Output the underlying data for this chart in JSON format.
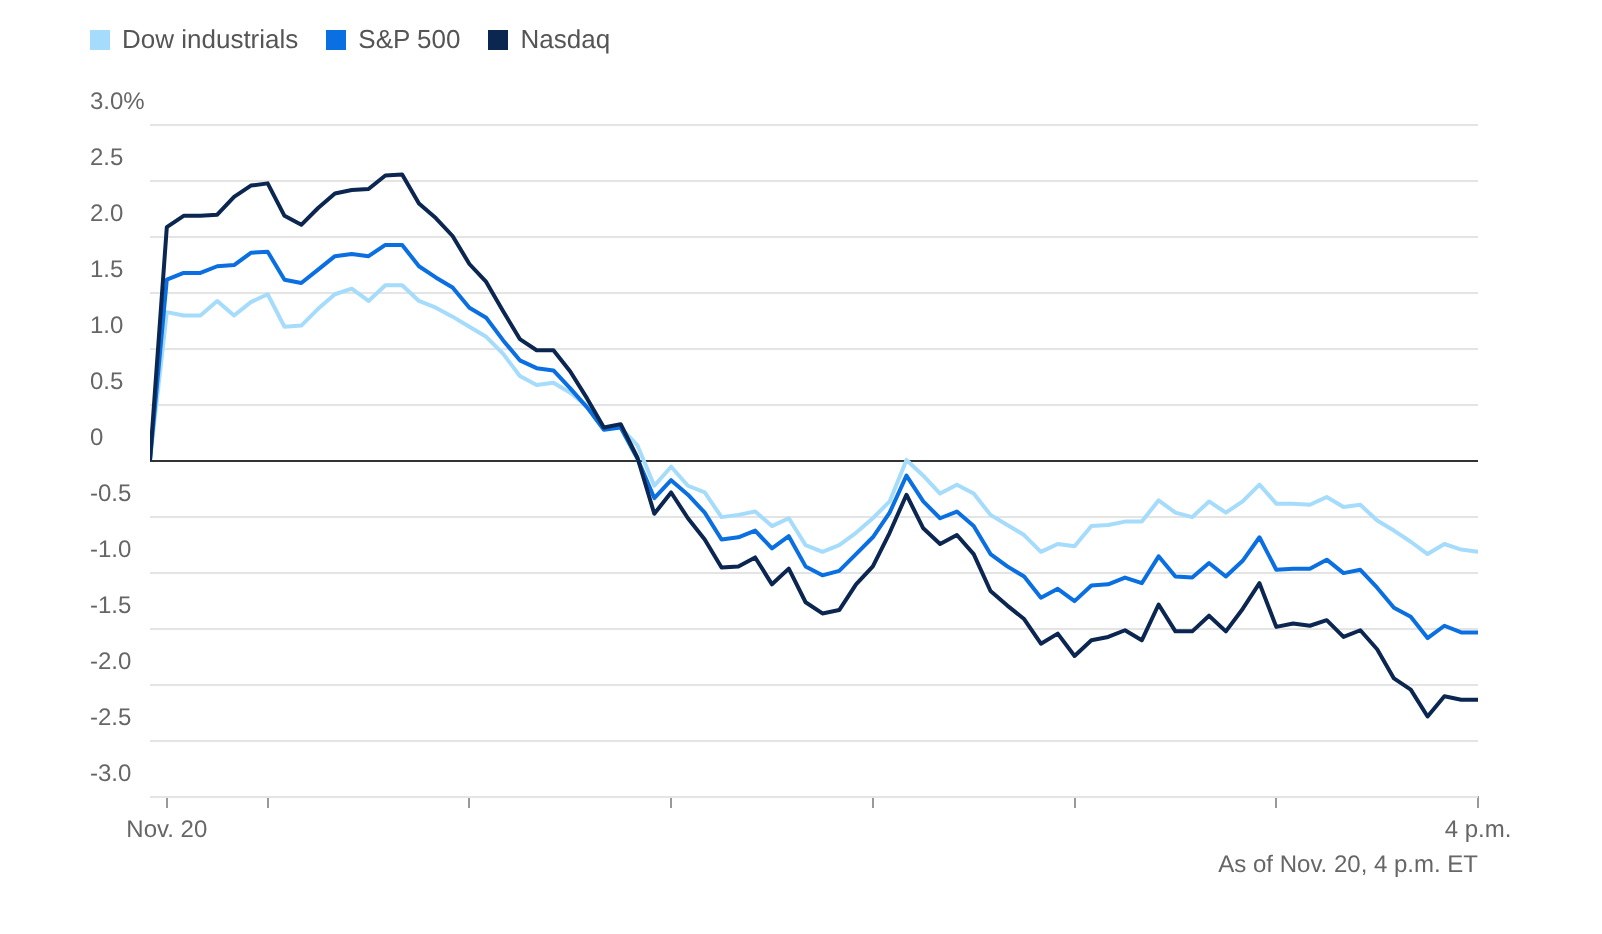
{
  "chart_data": {
    "type": "line",
    "legend": "top left",
    "grid": "y",
    "marker": "none",
    "line_style": "solid",
    "x": [
      "--11-20T09:25",
      "--11-20T09:30",
      "--11-20T09:35",
      "--11-20T09:40",
      "--11-20T09:45",
      "--11-20T09:50",
      "--11-20T09:55",
      "--11-20T10:00",
      "--11-20T10:05",
      "--11-20T10:10",
      "--11-20T10:15",
      "--11-20T10:20",
      "--11-20T10:25",
      "--11-20T10:30",
      "--11-20T10:35",
      "--11-20T10:40",
      "--11-20T10:45",
      "--11-20T10:50",
      "--11-20T10:55",
      "--11-20T11:00",
      "--11-20T11:05",
      "--11-20T11:10",
      "--11-20T11:15",
      "--11-20T11:20",
      "--11-20T11:25",
      "--11-20T11:30",
      "--11-20T11:35",
      "--11-20T11:40",
      "--11-20T11:45",
      "--11-20T11:50",
      "--11-20T11:55",
      "--11-20T12:00",
      "--11-20T12:05",
      "--11-20T12:10",
      "--11-20T12:15",
      "--11-20T12:20",
      "--11-20T12:25",
      "--11-20T12:30",
      "--11-20T12:35",
      "--11-20T12:40",
      "--11-20T12:45",
      "--11-20T12:50",
      "--11-20T12:55",
      "--11-20T13:00",
      "--11-20T13:05",
      "--11-20T13:10",
      "--11-20T13:15",
      "--11-20T13:20",
      "--11-20T13:25",
      "--11-20T13:30",
      "--11-20T13:35",
      "--11-20T13:40",
      "--11-20T13:45",
      "--11-20T13:50",
      "--11-20T13:55",
      "--11-20T14:00",
      "--11-20T14:05",
      "--11-20T14:10",
      "--11-20T14:15",
      "--11-20T14:20",
      "--11-20T14:25",
      "--11-20T14:30",
      "--11-20T14:35",
      "--11-20T14:40",
      "--11-20T14:45",
      "--11-20T14:50",
      "--11-20T14:55",
      "--11-20T15:00",
      "--11-20T15:05",
      "--11-20T15:10",
      "--11-20T15:15",
      "--11-20T15:20",
      "--11-20T15:25",
      "--11-20T15:30",
      "--11-20T15:35",
      "--11-20T15:40",
      "--11-20T15:45",
      "--11-20T15:50",
      "--11-20T15:55",
      "--11-20T16:00"
    ],
    "xlim": [
      "--11-20T09:25",
      "--11-20T16:00"
    ],
    "xticks": [
      {
        "value": "--11-20T09:30",
        "label": "Nov. 20"
      },
      {
        "value": "--11-20T10:00",
        "label": null
      },
      {
        "value": "--11-20T11:00",
        "label": null
      },
      {
        "value": "--11-20T12:00",
        "label": null
      },
      {
        "value": "--11-20T13:00",
        "label": null
      },
      {
        "value": "--11-20T14:00",
        "label": null
      },
      {
        "value": "--11-20T15:00",
        "label": null
      },
      {
        "value": "--11-20T16:00",
        "label": "4 p.m."
      }
    ],
    "ylim": [
      -3,
      3
    ],
    "yticks": [
      {
        "value": 3,
        "label": "3.0%"
      },
      {
        "value": 2.5,
        "label": "2.5"
      },
      {
        "value": 2,
        "label": "2.0"
      },
      {
        "value": 1.5,
        "label": "1.5"
      },
      {
        "value": 1,
        "label": "1.0"
      },
      {
        "value": 0.5,
        "label": "0.5"
      },
      0,
      {
        "value": -0.5,
        "label": "-0.5"
      },
      {
        "value": -1,
        "label": "-1.0"
      },
      {
        "value": -1.5,
        "label": "-1.5"
      },
      {
        "value": -2,
        "label": "-2.0"
      },
      {
        "value": -2.5,
        "label": "-2.5"
      },
      {
        "value": -3,
        "label": "-3.0"
      }
    ],
    "ref_lines": [
      {
        "axis": "y",
        "value": 0,
        "label": null,
        "color": "#333333"
      }
    ],
    "annotations": [
      "As of Nov. 20, 4 p.m. ET"
    ],
    "series": [
      {
        "name": "Dow industrials",
        "color": "#a5dcfb",
        "values": [
          0,
          1.32,
          1.29,
          1.29,
          1.42,
          1.29,
          1.41,
          1.48,
          1.19,
          1.2,
          1.35,
          1.48,
          1.53,
          1.42,
          1.56,
          1.56,
          1.42,
          1.36,
          1.28,
          1.19,
          1.1,
          0.95,
          0.75,
          0.67,
          0.69,
          0.6,
          0.48,
          0.29,
          0.29,
          0.13,
          -0.23,
          -0.06,
          -0.23,
          -0.29,
          -0.51,
          -0.49,
          -0.46,
          -0.59,
          -0.52,
          -0.76,
          -0.82,
          -0.76,
          -0.65,
          -0.52,
          -0.37,
          0.0,
          -0.14,
          -0.3,
          -0.22,
          -0.3,
          -0.49,
          -0.58,
          -0.67,
          -0.82,
          -0.75,
          -0.77,
          -0.59,
          -0.58,
          -0.55,
          -0.55,
          -0.36,
          -0.47,
          -0.51,
          -0.37,
          -0.47,
          -0.37,
          -0.22,
          -0.39,
          -0.39,
          -0.4,
          -0.33,
          -0.42,
          -0.4,
          -0.54,
          -0.63,
          -0.73,
          -0.84,
          -0.75,
          -0.8,
          -0.82
        ]
      },
      {
        "name": "S&P 500",
        "color": "#0a6fe0",
        "values": [
          0,
          1.61,
          1.67,
          1.67,
          1.73,
          1.74,
          1.85,
          1.86,
          1.61,
          1.58,
          1.7,
          1.82,
          1.84,
          1.82,
          1.92,
          1.92,
          1.73,
          1.63,
          1.54,
          1.36,
          1.27,
          1.07,
          0.89,
          0.82,
          0.8,
          0.64,
          0.47,
          0.27,
          0.29,
          0.01,
          -0.34,
          -0.18,
          -0.31,
          -0.47,
          -0.71,
          -0.69,
          -0.63,
          -0.79,
          -0.68,
          -0.95,
          -1.03,
          -0.99,
          -0.84,
          -0.69,
          -0.47,
          -0.14,
          -0.37,
          -0.52,
          -0.46,
          -0.59,
          -0.84,
          -0.95,
          -1.04,
          -1.23,
          -1.15,
          -1.26,
          -1.12,
          -1.11,
          -1.05,
          -1.1,
          -0.86,
          -1.04,
          -1.05,
          -0.92,
          -1.04,
          -0.9,
          -0.69,
          -0.98,
          -0.97,
          -0.97,
          -0.89,
          -1.01,
          -0.98,
          -1.14,
          -1.32,
          -1.4,
          -1.59,
          -1.48,
          -1.54,
          -1.54
        ]
      },
      {
        "name": "Nasdaq",
        "color": "#0b2650",
        "values": [
          0,
          2.08,
          2.18,
          2.18,
          2.19,
          2.35,
          2.45,
          2.47,
          2.18,
          2.1,
          2.25,
          2.38,
          2.41,
          2.42,
          2.54,
          2.55,
          2.29,
          2.16,
          2.0,
          1.75,
          1.59,
          1.33,
          1.08,
          0.98,
          0.98,
          0.79,
          0.55,
          0.29,
          0.32,
          0.02,
          -0.48,
          -0.29,
          -0.52,
          -0.71,
          -0.96,
          -0.95,
          -0.87,
          -1.11,
          -0.97,
          -1.27,
          -1.37,
          -1.34,
          -1.11,
          -0.95,
          -0.65,
          -0.31,
          -0.61,
          -0.75,
          -0.67,
          -0.84,
          -1.17,
          -1.3,
          -1.42,
          -1.64,
          -1.55,
          -1.75,
          -1.61,
          -1.58,
          -1.52,
          -1.61,
          -1.29,
          -1.53,
          -1.53,
          -1.39,
          -1.53,
          -1.33,
          -1.1,
          -1.49,
          -1.46,
          -1.48,
          -1.43,
          -1.58,
          -1.52,
          -1.69,
          -1.95,
          -2.05,
          -2.29,
          -2.11,
          -2.14,
          -2.14
        ]
      }
    ]
  }
}
